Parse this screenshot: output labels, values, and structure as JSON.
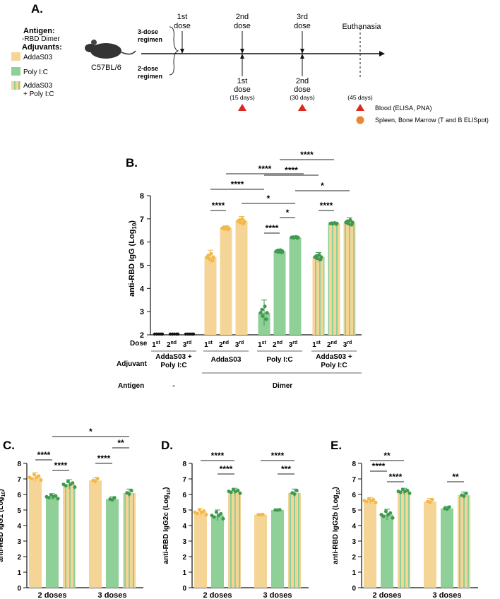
{
  "colors": {
    "adda": "#f5d596",
    "adda_dot": "#f2b949",
    "poly": "#8fcf98",
    "poly_dot": "#3e9a4f",
    "stripe": "#b9c96a",
    "black": "#111111",
    "marker_red": "#d82a1f",
    "marker_orange": "#e8872c"
  },
  "panelA": {
    "label": "A.",
    "antigen_title": "Antigen:",
    "antigen_value": "-RBD Dimer",
    "adjuvants_title": "Adjuvants:",
    "legend": [
      {
        "text": "AddaS03",
        "color": "adda"
      },
      {
        "text": "Poly I:C",
        "color": "poly"
      },
      {
        "text": "AddaS03",
        "text2": "+ Poly I:C",
        "color": "stripe"
      }
    ],
    "mouse": "C57BL/6",
    "regimen3": [
      "3-dose",
      "regimen"
    ],
    "regimen2": [
      "2-dose",
      "regimen"
    ],
    "top_doses": [
      [
        "1st",
        "dose"
      ],
      [
        "2nd",
        "dose"
      ],
      [
        "3rd",
        "dose"
      ]
    ],
    "euthanasia": "Euthanasia",
    "bottom_doses": [
      [
        "1st",
        "dose",
        "(15 days)"
      ],
      [
        "2nd",
        "dose",
        "(30 days)"
      ]
    ],
    "day45": "(45 days)",
    "legend_blood": "Blood (ELISA, PNA)",
    "legend_spleen": "Spleen, Bone Marrow (T and B ELISpot)"
  },
  "chart_data": [
    {
      "id": "B",
      "label": "B.",
      "type": "bar",
      "ylabel": "anti-RBD IgG (Log10)",
      "ylim": [
        2,
        8
      ],
      "yticks": [
        "2",
        "3",
        "4",
        "5",
        "6",
        "7",
        "8"
      ],
      "dose_row_label": "Dose",
      "adjuvant_row_label": "Adjuvant",
      "antigen_row_label": "Antigen",
      "dose_sups": [
        [
          "1",
          "st"
        ],
        [
          "2",
          "nd"
        ],
        [
          "3",
          "rd"
        ]
      ],
      "groups": [
        {
          "adjuvant": "AddaS03 + Poly I:C",
          "color": "black",
          "values": [
            2.0,
            2.0,
            2.0
          ],
          "err": [
            0,
            0,
            0
          ]
        },
        {
          "adjuvant": "AddaS03",
          "color": "adda",
          "values": [
            5.35,
            6.6,
            6.9
          ],
          "err": [
            0.3,
            0.1,
            0.2
          ]
        },
        {
          "adjuvant": "Poly I:C",
          "color": "poly",
          "values": [
            2.95,
            5.6,
            6.2
          ],
          "err": [
            0.55,
            0.1,
            0.05
          ]
        },
        {
          "adjuvant": "AddaS03 + Poly I:C",
          "color": "stripe",
          "values": [
            5.35,
            6.8,
            6.85
          ],
          "err": [
            0.2,
            0.05,
            0.2
          ]
        }
      ],
      "antigens": [
        "-",
        "Dimer"
      ],
      "significance": [
        "****",
        "****",
        "****",
        "****",
        "****",
        "*",
        "*",
        "****",
        "*",
        "****"
      ]
    },
    {
      "id": "C",
      "label": "C.",
      "type": "bar",
      "ylabel": "anti-RBD IgG1 (Log10)",
      "ylim": [
        0,
        8
      ],
      "yticks": [
        "0",
        "1",
        "2",
        "3",
        "4",
        "5",
        "6",
        "7",
        "8"
      ],
      "categories": [
        "2 doses",
        "3 doses"
      ],
      "series": [
        {
          "name": "AddaS03",
          "values": [
            7.1,
            6.9
          ],
          "err": [
            0.3,
            0.2
          ]
        },
        {
          "name": "Poly I:C",
          "values": [
            5.85,
            5.7
          ],
          "err": [
            0.2,
            0.15
          ]
        },
        {
          "name": "AddaS03 + Poly I:C",
          "values": [
            6.65,
            6.1
          ],
          "err": [
            0.3,
            0.25
          ]
        }
      ],
      "significance": [
        "****",
        "****",
        "*",
        "**",
        "****"
      ]
    },
    {
      "id": "D",
      "label": "D.",
      "type": "bar",
      "ylabel": "anti-RBD IgG2c (Log10)",
      "ylim": [
        0,
        8
      ],
      "yticks": [
        "0",
        "1",
        "2",
        "3",
        "4",
        "5",
        "6",
        "7",
        "8"
      ],
      "categories": [
        "2 doses",
        "3 doses"
      ],
      "series": [
        {
          "name": "AddaS03",
          "values": [
            4.85,
            4.7
          ],
          "err": [
            0.25,
            0.02
          ]
        },
        {
          "name": "Poly I:C",
          "values": [
            4.65,
            5.0
          ],
          "err": [
            0.35,
            0.02
          ]
        },
        {
          "name": "AddaS03 + Poly I:C",
          "values": [
            6.2,
            6.1
          ],
          "err": [
            0.2,
            0.25
          ]
        }
      ],
      "significance": [
        "****",
        "****",
        "****",
        "***"
      ]
    },
    {
      "id": "E",
      "label": "E.",
      "type": "bar",
      "ylabel": "anti-RBD IgG2b (Log10)",
      "ylim": [
        0,
        8
      ],
      "yticks": [
        "0",
        "1",
        "2",
        "3",
        "4",
        "5",
        "6",
        "7",
        "8"
      ],
      "categories": [
        "2 doses",
        "3 doses"
      ],
      "series": [
        {
          "name": "AddaS03",
          "values": [
            5.6,
            5.55
          ],
          "err": [
            0.2,
            0.2
          ]
        },
        {
          "name": "Poly I:C",
          "values": [
            4.7,
            5.1
          ],
          "err": [
            0.35,
            0.15
          ]
        },
        {
          "name": "AddaS03 + Poly I:C",
          "values": [
            6.2,
            5.95
          ],
          "err": [
            0.2,
            0.2
          ]
        }
      ],
      "significance": [
        "**",
        "****",
        "****",
        "**"
      ]
    }
  ]
}
